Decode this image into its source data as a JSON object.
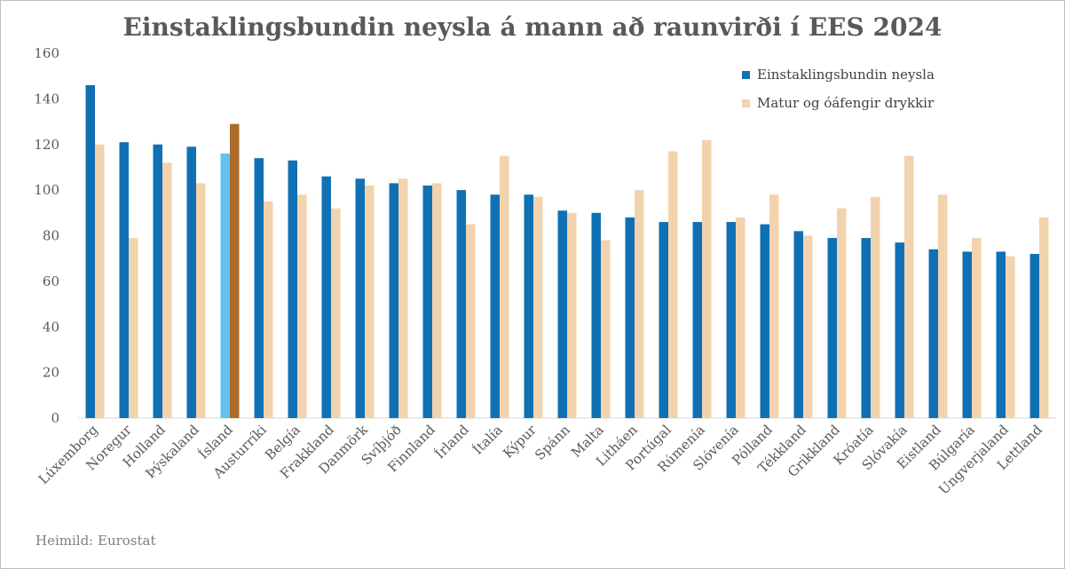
{
  "chart_data": {
    "type": "bar",
    "title": "Einstaklingsbundin neysla á mann að raunvirði í EES 2024",
    "source": "Heimild: Eurostat",
    "ylim": [
      0,
      160
    ],
    "yticks": [
      0,
      20,
      40,
      60,
      80,
      100,
      120,
      140,
      160
    ],
    "grid": false,
    "legend_position": "top-right",
    "categories": [
      "Lúxemborg",
      "Noregur",
      "Holland",
      "Þýskaland",
      "Ísland",
      "Austurríki",
      "Belgía",
      "Frakkland",
      "Danmörk",
      "Svíþjóð",
      "Finnland",
      "Írland",
      "Ítalía",
      "Kýpur",
      "Spánn",
      "Malta",
      "Litháen",
      "Portúgal",
      "Rúmenía",
      "Slóvenía",
      "Pólland",
      "Tékkland",
      "Grikkland",
      "Króatía",
      "Slóvakía",
      "Eistland",
      "Búlgaría",
      "Ungverjaland",
      "Lettland"
    ],
    "series": [
      {
        "name": "Einstaklingsbundin neysla",
        "color": "#0f71b4",
        "values": [
          146,
          121,
          120,
          119,
          116,
          114,
          113,
          106,
          105,
          103,
          102,
          100,
          98,
          98,
          91,
          90,
          88,
          86,
          86,
          86,
          85,
          82,
          79,
          79,
          77,
          74,
          73,
          73,
          72
        ]
      },
      {
        "name": "Matur og óáfengir drykkir",
        "color": "#f2d3ad",
        "values": [
          120,
          79,
          112,
          103,
          129,
          95,
          98,
          92,
          102,
          105,
          103,
          85,
          115,
          97,
          90,
          78,
          100,
          117,
          122,
          88,
          98,
          80,
          92,
          97,
          115,
          98,
          79,
          71,
          88
        ]
      }
    ],
    "highlight": {
      "category": "Ísland",
      "colors": [
        "#63c1ee",
        "#ab6b2b"
      ]
    }
  }
}
